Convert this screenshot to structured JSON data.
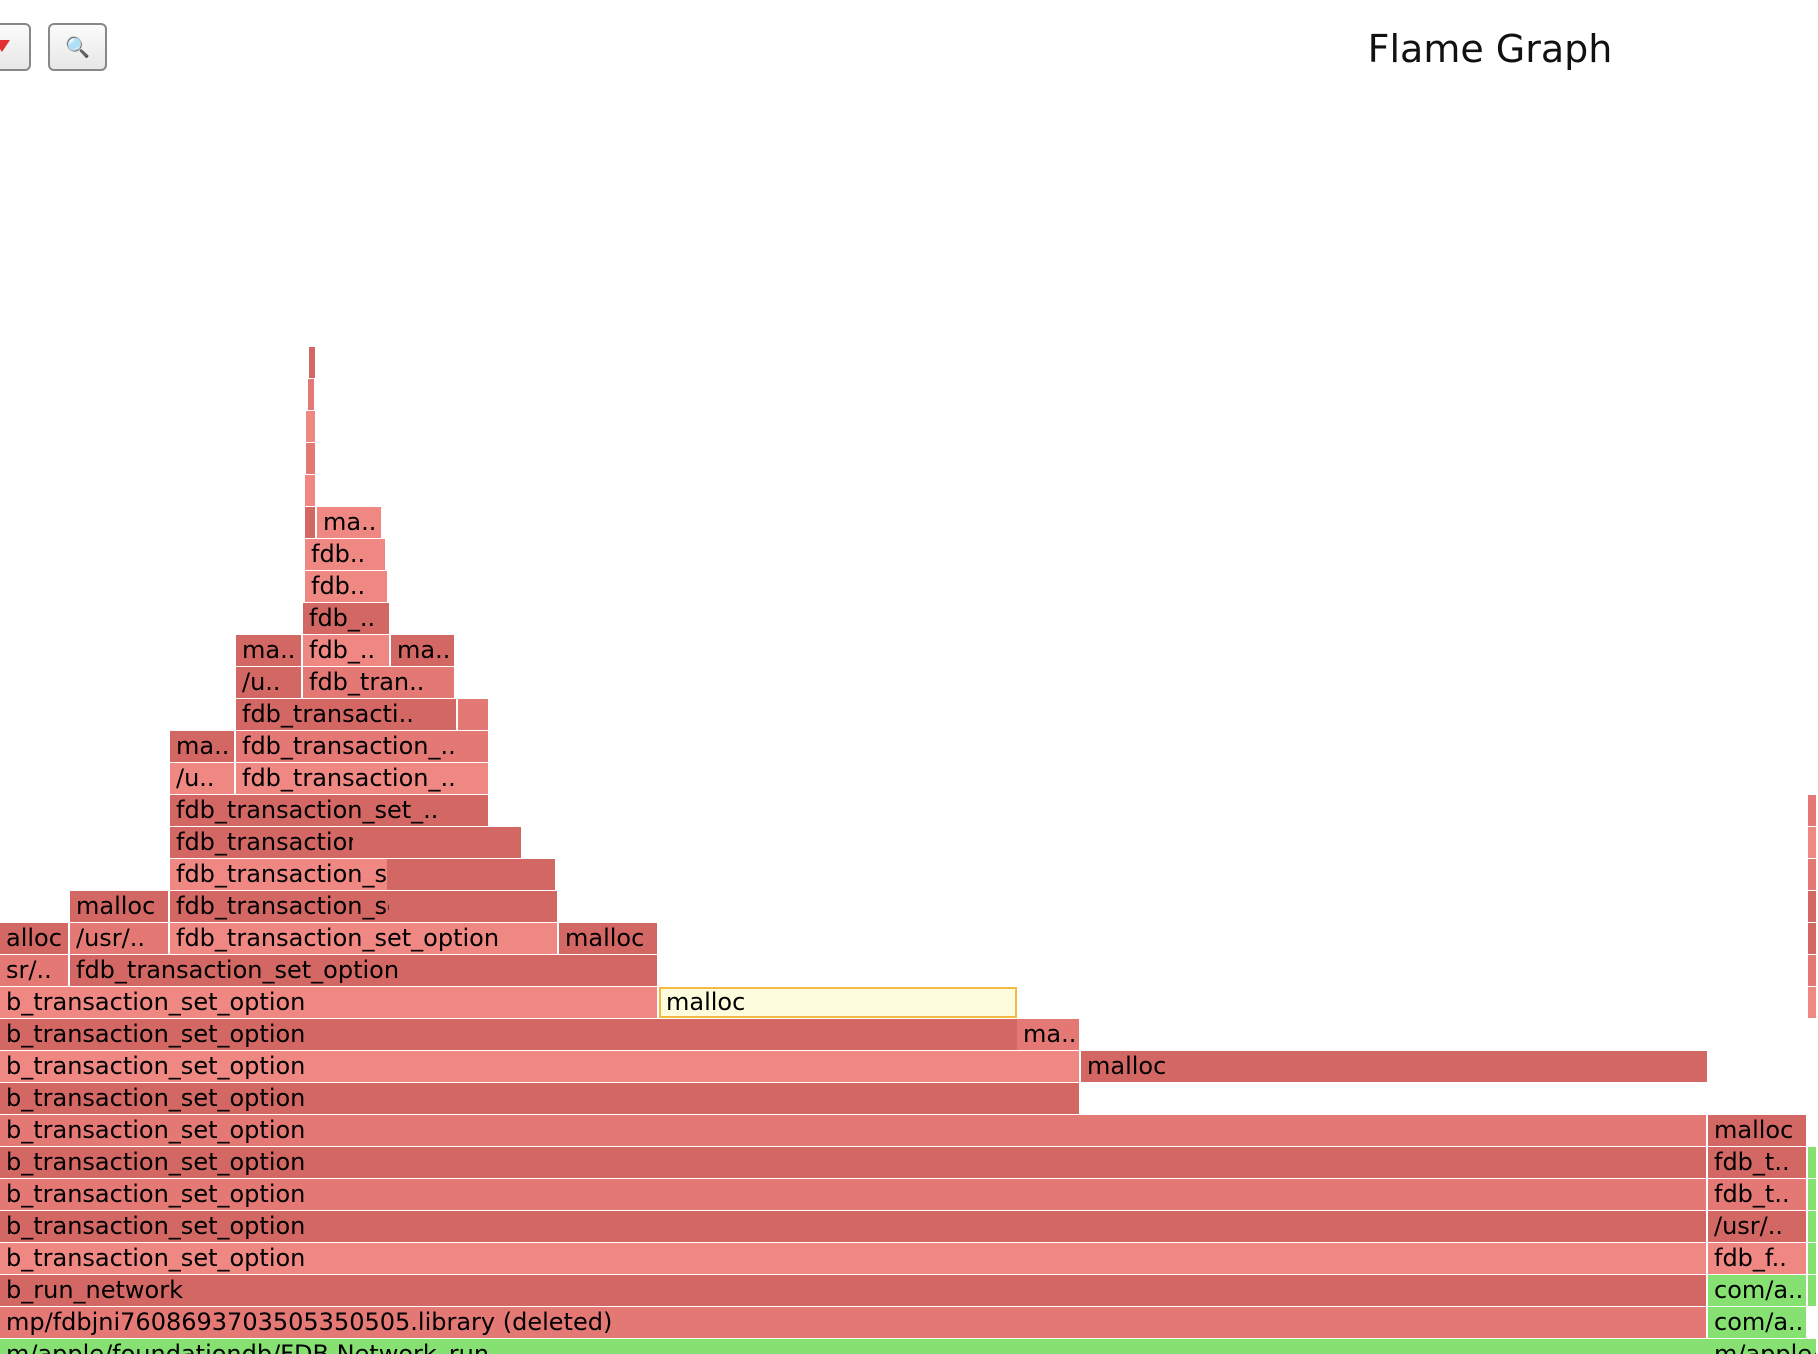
{
  "toolbar": {
    "reset_icon": "reset-zoom-icon",
    "search_icon": "magnifier-icon",
    "search_glyph": "🔍"
  },
  "title": "Flame Graph",
  "colors": {
    "red_a": "#d36764",
    "red_b": "#e47875",
    "red_c": "#ef8783",
    "green": "#86e172",
    "highlight_fill": "#fdfdde",
    "highlight_border": "#f4b942"
  },
  "frames": [
    {
      "label": "m/apple/foundationdb/FDB.Network_run",
      "color": "green"
    },
    {
      "label": "mp/fdbjni7608693703505350505.library (deleted)",
      "color": "red_b"
    },
    {
      "label": "b_run_network",
      "color": "red_a"
    },
    {
      "label": "b_transaction_set_option",
      "color": "red_c"
    },
    {
      "label": "b_transaction_set_option",
      "color": "red_a"
    },
    {
      "label": "b_transaction_set_option",
      "color": "red_b"
    },
    {
      "label": "b_transaction_set_option",
      "color": "red_a"
    },
    {
      "label": "b_transaction_set_option",
      "color": "red_b"
    },
    {
      "label": "b_transaction_set_option",
      "color": "red_a"
    },
    {
      "label": "b_transaction_set_option",
      "color": "red_c"
    },
    {
      "label": "b_transaction_set_option",
      "color": "red_a"
    },
    {
      "label": "b_transaction_set_option",
      "color": "red_c"
    },
    {
      "label": "sr/..",
      "color": "red_b"
    },
    {
      "label": "fdb_transaction_set_option",
      "color": "red_a"
    },
    {
      "label": "alloc",
      "color": "red_a"
    },
    {
      "label": "/usr/..",
      "color": "red_b"
    },
    {
      "label": "fdb_transaction_set_option",
      "color": "red_c"
    },
    {
      "label": "malloc",
      "color": "red_a"
    },
    {
      "label": "malloc",
      "color": "red_a"
    },
    {
      "label": "fdb_transaction_set_option",
      "color": "red_a"
    },
    {
      "label": "",
      "color": "red_a"
    },
    {
      "label": "fdb_transaction_set_opt..",
      "color": "red_c"
    },
    {
      "label": "",
      "color": "red_a"
    },
    {
      "label": "fdb_transaction_set_..",
      "color": "red_a"
    },
    {
      "label": "",
      "color": "red_a"
    },
    {
      "label": "fdb_transaction_set_..",
      "color": "red_a"
    },
    {
      "label": "/u..",
      "color": "red_c"
    },
    {
      "label": "fdb_transaction_..",
      "color": "red_c"
    },
    {
      "label": "ma..",
      "color": "red_a"
    },
    {
      "label": "fdb_transaction_..",
      "color": "red_b"
    },
    {
      "label": "fdb_transacti..",
      "color": "red_a"
    },
    {
      "label": "",
      "color": "red_b"
    },
    {
      "label": "/u..",
      "color": "red_a"
    },
    {
      "label": "fdb_tran..",
      "color": "red_b"
    },
    {
      "label": "ma..",
      "color": "red_a"
    },
    {
      "label": "fdb_..",
      "color": "red_c"
    },
    {
      "label": "ma..",
      "color": "red_a"
    },
    {
      "label": "fdb_..",
      "color": "red_a"
    },
    {
      "label": "fdb..",
      "color": "red_c"
    },
    {
      "label": "fdb..",
      "color": "red_c"
    },
    {
      "label": "",
      "color": "red_a"
    },
    {
      "label": "ma..",
      "color": "red_c"
    },
    {
      "label": "",
      "color": "red_c"
    },
    {
      "label": "",
      "color": "red_b"
    },
    {
      "label": "",
      "color": "red_c"
    },
    {
      "label": "",
      "color": "red_b"
    },
    {
      "label": "",
      "color": "red_a"
    },
    {
      "label": "malloc",
      "color": "highlight_fill"
    },
    {
      "label": "ma..",
      "color": "red_b"
    },
    {
      "label": "malloc",
      "color": "red_a"
    },
    {
      "label": "m/apple/foundationdb/FDB.Network_run",
      "color": "green"
    },
    {
      "label": "com/a..",
      "color": "green"
    },
    {
      "label": "com/a..",
      "color": "green"
    },
    {
      "label": "fdb_f..",
      "color": "red_c"
    },
    {
      "label": "/usr/..",
      "color": "red_a"
    },
    {
      "label": "fdb_t..",
      "color": "red_b"
    },
    {
      "label": "fdb_t..",
      "color": "red_a"
    },
    {
      "label": "malloc",
      "color": "red_a"
    },
    {
      "label": "",
      "color": "green"
    },
    {
      "label": "",
      "color": "green"
    },
    {
      "label": "",
      "color": "green"
    },
    {
      "label": "",
      "color": "green"
    },
    {
      "label": "",
      "color": "green"
    },
    {
      "label": "",
      "color": "red_c"
    },
    {
      "label": "",
      "color": "red_b"
    },
    {
      "label": "",
      "color": "red_a"
    },
    {
      "label": "",
      "color": "red_a"
    },
    {
      "label": "",
      "color": "red_b"
    },
    {
      "label": "",
      "color": "red_c"
    },
    {
      "label": "",
      "color": "red_b"
    },
    {
      "label": "",
      "color": "red_a"
    }
  ]
}
